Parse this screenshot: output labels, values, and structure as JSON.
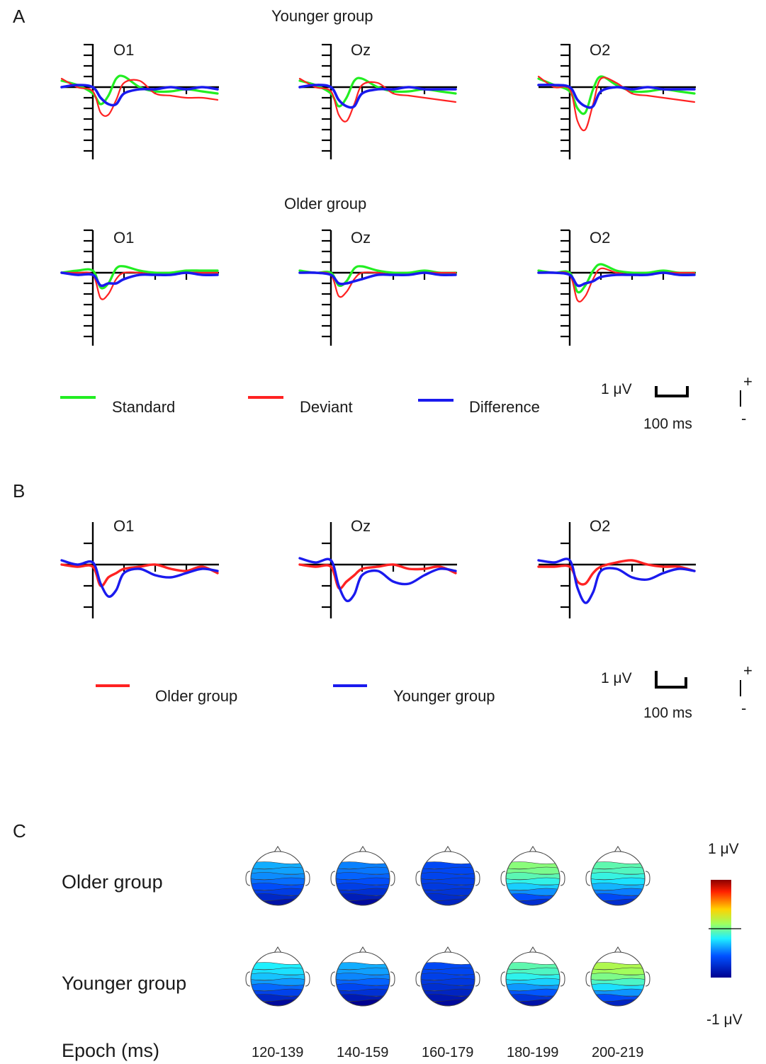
{
  "panels": {
    "a": "A",
    "b": "B",
    "c": "C"
  },
  "panel_a": {
    "younger_title": "Younger group",
    "older_title": "Older group",
    "electrodes": [
      "O1",
      "Oz",
      "O2"
    ],
    "legend": {
      "standard": "Standard",
      "deviant": "Deviant",
      "difference": "Difference"
    },
    "scale": {
      "amplitude": "1 μV",
      "time": "100 ms",
      "plus": "+",
      "minus": "-"
    }
  },
  "panel_b": {
    "electrodes": [
      "O1",
      "Oz",
      "O2"
    ],
    "legend": {
      "older": "Older group",
      "younger": "Younger group"
    },
    "scale": {
      "amplitude": "1 μV",
      "time": "100 ms",
      "plus": "+",
      "minus": "-"
    }
  },
  "panel_c": {
    "rows": [
      "Older group",
      "Younger group"
    ],
    "epoch_label": "Epoch (ms)",
    "epochs": [
      "120-139",
      "140-159",
      "160-179",
      "180-199",
      "200-219"
    ],
    "colorbar": {
      "max": "1 μV",
      "min": "-1 μV"
    }
  },
  "colors": {
    "standard": "#22ee22",
    "deviant": "#ff2222",
    "difference": "#1a1aee",
    "older": "#ff2222",
    "younger": "#1a1aee",
    "axis": "#000000"
  },
  "chart_data": [
    {
      "type": "line",
      "title": "Younger group",
      "xlabel": "",
      "ylabel": "",
      "x_unit": "ms",
      "y_unit": "μV",
      "x": [
        -100,
        -50,
        0,
        25,
        50,
        75,
        100,
        150,
        200,
        250,
        300,
        350,
        400
      ],
      "electrodes": [
        {
          "name": "O1",
          "series": [
            {
              "name": "Standard",
              "values": [
                0.3,
                0.1,
                -0.3,
                -0.8,
                -0.4,
                0.4,
                0.5,
                0.0,
                -0.2,
                -0.2,
                -0.1,
                -0.2,
                -0.3
              ]
            },
            {
              "name": "Deviant",
              "values": [
                0.4,
                0.0,
                -0.2,
                -1.2,
                -1.3,
                -0.6,
                0.2,
                0.3,
                -0.3,
                -0.4,
                -0.5,
                -0.5,
                -0.6
              ]
            },
            {
              "name": "Difference",
              "values": [
                0.0,
                0.1,
                0.0,
                -0.5,
                -0.8,
                -0.8,
                -0.3,
                -0.1,
                -0.1,
                0.0,
                -0.1,
                0.0,
                -0.1
              ]
            }
          ]
        },
        {
          "name": "Oz",
          "series": [
            {
              "name": "Standard",
              "values": [
                0.3,
                0.1,
                -0.3,
                -0.9,
                -0.5,
                0.3,
                0.4,
                0.0,
                -0.2,
                -0.2,
                -0.1,
                -0.2,
                -0.3
              ]
            },
            {
              "name": "Deviant",
              "values": [
                0.4,
                0.0,
                -0.2,
                -1.3,
                -1.6,
                -0.8,
                0.1,
                0.2,
                -0.3,
                -0.4,
                -0.5,
                -0.6,
                -0.7
              ]
            },
            {
              "name": "Difference",
              "values": [
                0.0,
                0.1,
                0.0,
                -0.6,
                -0.9,
                -0.9,
                -0.3,
                -0.1,
                -0.1,
                0.0,
                -0.1,
                -0.1,
                -0.1
              ]
            }
          ]
        },
        {
          "name": "O2",
          "series": [
            {
              "name": "Standard",
              "values": [
                0.4,
                0.1,
                -0.2,
                -1.0,
                -1.2,
                -0.1,
                0.5,
                0.1,
                -0.2,
                -0.2,
                -0.1,
                -0.2,
                -0.3
              ]
            },
            {
              "name": "Deviant",
              "values": [
                0.5,
                0.0,
                -0.1,
                -1.6,
                -2.0,
                -0.8,
                0.4,
                0.2,
                -0.3,
                -0.4,
                -0.5,
                -0.6,
                -0.7
              ]
            },
            {
              "name": "Difference",
              "values": [
                0.1,
                0.1,
                0.0,
                -0.6,
                -0.9,
                -0.9,
                -0.2,
                0.0,
                -0.1,
                0.0,
                -0.1,
                -0.1,
                -0.1
              ]
            }
          ]
        }
      ]
    },
    {
      "type": "line",
      "title": "Older group",
      "xlabel": "",
      "ylabel": "",
      "x_unit": "ms",
      "y_unit": "μV",
      "x": [
        -100,
        -50,
        0,
        25,
        50,
        75,
        100,
        150,
        200,
        250,
        300,
        350,
        400
      ],
      "electrodes": [
        {
          "name": "O1",
          "series": [
            {
              "name": "Standard",
              "values": [
                0.0,
                0.1,
                0.1,
                -0.7,
                -0.5,
                0.2,
                0.3,
                0.1,
                0.0,
                0.0,
                0.1,
                0.1,
                0.1
              ]
            },
            {
              "name": "Deviant",
              "values": [
                0.0,
                0.0,
                -0.1,
                -1.2,
                -1.0,
                -0.3,
                0.0,
                0.0,
                -0.1,
                -0.1,
                0.0,
                0.0,
                0.0
              ]
            },
            {
              "name": "Difference",
              "values": [
                0.0,
                -0.1,
                -0.1,
                -0.6,
                -0.5,
                -0.5,
                -0.3,
                -0.1,
                -0.1,
                -0.1,
                0.0,
                -0.1,
                -0.1
              ]
            }
          ]
        },
        {
          "name": "Oz",
          "series": [
            {
              "name": "Standard",
              "values": [
                0.1,
                0.0,
                0.0,
                -0.6,
                -0.4,
                0.2,
                0.3,
                0.1,
                0.0,
                0.0,
                0.1,
                0.0,
                0.0
              ]
            },
            {
              "name": "Deviant",
              "values": [
                0.0,
                0.0,
                -0.1,
                -1.1,
                -0.9,
                -0.3,
                0.0,
                0.0,
                -0.1,
                -0.1,
                0.0,
                0.0,
                0.0
              ]
            },
            {
              "name": "Difference",
              "values": [
                0.0,
                0.0,
                -0.1,
                -0.5,
                -0.5,
                -0.4,
                -0.3,
                -0.1,
                -0.1,
                -0.1,
                0.0,
                -0.1,
                -0.1
              ]
            }
          ]
        },
        {
          "name": "O2",
          "series": [
            {
              "name": "Standard",
              "values": [
                0.1,
                0.0,
                0.0,
                -0.9,
                -0.6,
                0.1,
                0.4,
                0.1,
                0.0,
                0.0,
                0.1,
                0.0,
                0.0
              ]
            },
            {
              "name": "Deviant",
              "values": [
                0.0,
                0.0,
                -0.1,
                -1.3,
                -1.1,
                -0.3,
                0.2,
                0.0,
                -0.1,
                -0.1,
                0.0,
                0.0,
                0.0
              ]
            },
            {
              "name": "Difference",
              "values": [
                0.0,
                0.0,
                -0.1,
                -0.6,
                -0.5,
                -0.4,
                -0.2,
                -0.1,
                -0.1,
                -0.1,
                0.0,
                -0.1,
                -0.1
              ]
            }
          ]
        }
      ]
    },
    {
      "type": "line",
      "title": "",
      "xlabel": "",
      "ylabel": "",
      "x_unit": "ms",
      "y_unit": "μV",
      "x": [
        -100,
        -50,
        0,
        25,
        50,
        75,
        100,
        150,
        200,
        250,
        300,
        350,
        400
      ],
      "electrodes": [
        {
          "name": "O1",
          "series": [
            {
              "name": "Older group",
              "values": [
                0.0,
                -0.1,
                -0.1,
                -1.0,
                -0.6,
                -0.4,
                -0.2,
                -0.1,
                0.0,
                -0.2,
                -0.3,
                -0.1,
                -0.4
              ]
            },
            {
              "name": "Younger group",
              "values": [
                0.2,
                0.0,
                0.1,
                -0.9,
                -1.5,
                -1.2,
                -0.4,
                -0.2,
                -0.5,
                -0.6,
                -0.4,
                -0.2,
                -0.3
              ]
            }
          ]
        },
        {
          "name": "Oz",
          "series": [
            {
              "name": "Older group",
              "values": [
                0.0,
                -0.1,
                -0.1,
                -1.1,
                -0.8,
                -0.5,
                -0.2,
                -0.1,
                0.0,
                -0.2,
                -0.2,
                -0.1,
                -0.4
              ]
            },
            {
              "name": "Younger group",
              "values": [
                0.3,
                0.1,
                0.2,
                -1.0,
                -1.7,
                -1.4,
                -0.5,
                -0.3,
                -0.8,
                -0.9,
                -0.5,
                -0.2,
                -0.3
              ]
            }
          ]
        },
        {
          "name": "O2",
          "series": [
            {
              "name": "Older group",
              "values": [
                -0.1,
                -0.1,
                -0.1,
                -0.8,
                -0.9,
                -0.4,
                -0.1,
                0.1,
                0.2,
                0.0,
                -0.1,
                -0.1,
                -0.3
              ]
            },
            {
              "name": "Younger group",
              "values": [
                0.2,
                0.1,
                0.2,
                -1.1,
                -1.8,
                -1.3,
                -0.3,
                -0.2,
                -0.6,
                -0.7,
                -0.4,
                -0.2,
                -0.3
              ]
            }
          ]
        }
      ]
    },
    {
      "type": "heatmap",
      "title": "",
      "xlabel": "Epoch (ms)",
      "ylabel": "",
      "columns": [
        "120-139",
        "140-159",
        "160-179",
        "180-199",
        "200-219"
      ],
      "rows": [
        "Older group",
        "Younger group"
      ],
      "color_range": [
        -1,
        1
      ],
      "z_unit": "μV",
      "anterior_mean": [
        [
          -0.35,
          -0.45,
          -0.6,
          0.05,
          -0.05
        ],
        [
          -0.2,
          -0.35,
          -0.6,
          -0.05,
          0.15
        ]
      ],
      "posterior_min": [
        [
          -0.9,
          -0.95,
          -0.8,
          -0.75,
          -0.75
        ],
        [
          -0.95,
          -1.0,
          -0.95,
          -0.9,
          -0.8
        ]
      ]
    }
  ]
}
